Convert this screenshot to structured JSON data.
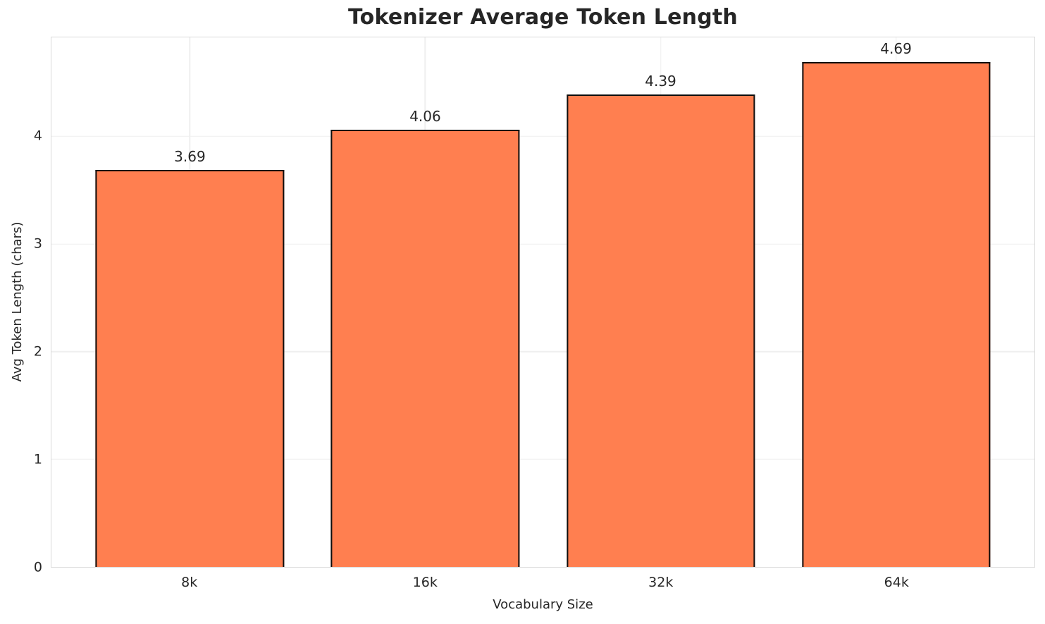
{
  "chart_data": {
    "type": "bar",
    "title": "Tokenizer Average Token Length",
    "xlabel": "Vocabulary Size",
    "ylabel": "Avg Token Length (chars)",
    "categories": [
      "8k",
      "16k",
      "32k",
      "64k"
    ],
    "values": [
      3.69,
      4.06,
      4.39,
      4.69
    ],
    "value_labels": [
      "3.69",
      "4.06",
      "4.39",
      "4.69"
    ],
    "yticks": [
      0,
      1,
      2,
      3,
      4
    ],
    "ylim": [
      0,
      4.92
    ],
    "grid": true,
    "legend": "none",
    "colors": {
      "bar_fill": "#FF7F50",
      "bar_edge": "#0d0d0d",
      "grid_line": "#efefef",
      "spine": "#d9d9d9",
      "text": "#262626",
      "background": "#ffffff"
    },
    "layout": {
      "side_margin_frac": 0.0211,
      "bar_width_frac_of_slot": 0.8
    }
  }
}
